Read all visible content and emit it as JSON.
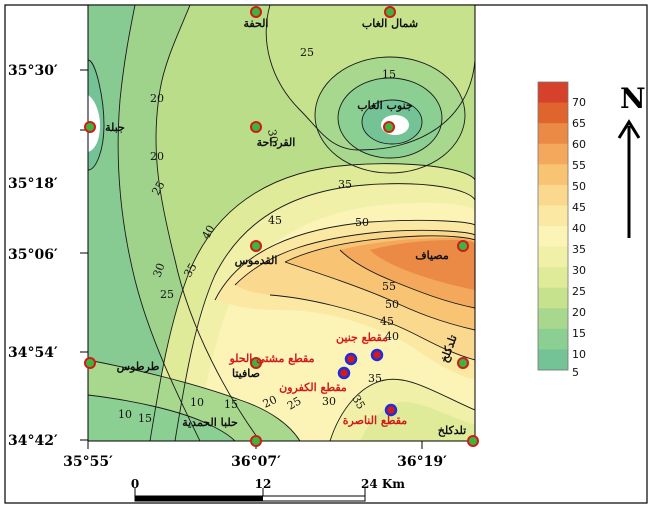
{
  "map": {
    "latitude_labels": [
      "35°30′",
      "35°18′",
      "35°06′",
      "34°54′",
      "34°42′"
    ],
    "longitude_labels": [
      "35°55′",
      "36°07′",
      "36°19′"
    ],
    "contour_values": [
      "10",
      "15",
      "20",
      "25",
      "25",
      "15",
      "30",
      "20",
      "25",
      "40",
      "35",
      "30",
      "35",
      "45",
      "50",
      "55",
      "50",
      "45",
      "40",
      "35",
      "30",
      "25",
      "20",
      "15",
      "10",
      "35"
    ],
    "cities": [
      {
        "name": "الحفة"
      },
      {
        "name": "شمال الغاب"
      },
      {
        "name": "جبلة"
      },
      {
        "name": "جنوب الغاب"
      },
      {
        "name": "القرداحة"
      },
      {
        "name": "القدموس"
      },
      {
        "name": "مصياف"
      },
      {
        "name": "طرطوس"
      },
      {
        "name": "صافيتا"
      },
      {
        "name": "تلدكلخ"
      },
      {
        "name": "حلبا الحمدية"
      },
      {
        "name": "تلدكلخ"
      }
    ],
    "sections": [
      {
        "name": "مقطع جنين"
      },
      {
        "name": "مقطع مشتى الحلو"
      },
      {
        "name": "مقطع الكفرون"
      },
      {
        "name": "مقطع الناصرة"
      }
    ],
    "colors": {
      "land_low": "#7fc99a",
      "land_mid": "#f5f0b2",
      "land_high": "#e0642e",
      "city_marker_fill": "#3db53d",
      "city_marker_stroke": "#d11a1a",
      "section_marker_fill": "#d11a1a",
      "section_marker_stroke": "#1f2ddb"
    }
  },
  "legend": {
    "values": [
      "70",
      "65",
      "60",
      "55",
      "50",
      "45",
      "40",
      "35",
      "30",
      "25",
      "20",
      "15",
      "10",
      "5"
    ],
    "colors": [
      "#d6412b",
      "#e0642e",
      "#ea8a44",
      "#f3a85c",
      "#f8c473",
      "#fad88e",
      "#fbe8a3",
      "#fbf4b6",
      "#f0f0a8",
      "#dfeb99",
      "#c6e28c",
      "#a7d88d",
      "#8ccf93",
      "#74c397"
    ]
  },
  "scale_bar": {
    "labels": [
      "0",
      "12",
      "24 Km"
    ]
  },
  "north_arrow": {
    "label": "N"
  }
}
